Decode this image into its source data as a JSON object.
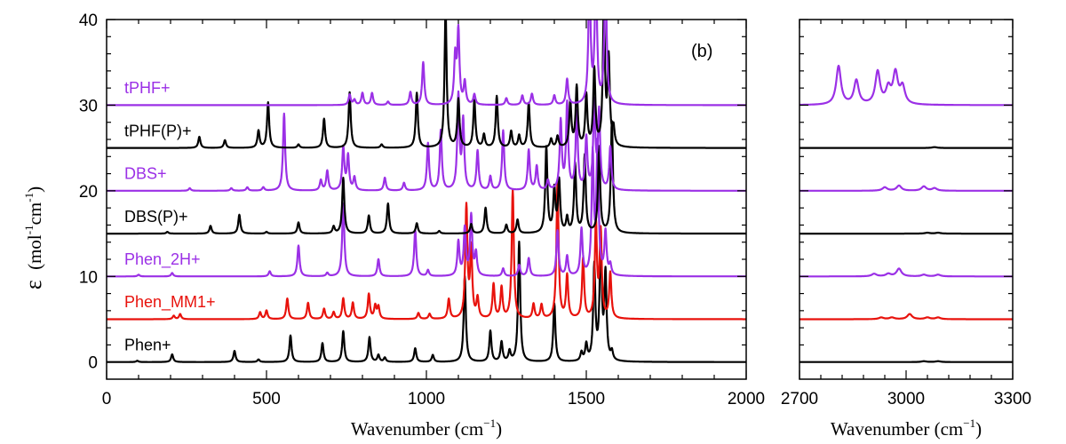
{
  "chart_data": [
    {
      "type": "line",
      "panel_label": "(b)",
      "xlabel_main": "Wavenumber (cm",
      "xlabel_sup": "−1",
      "xlabel_end": ")",
      "ylabel_symbol": "ε",
      "ylabel_unit": "(mol",
      "ylabel_sup1": "-1",
      "ylabel_mid": "cm",
      "ylabel_sup2": "-1",
      "ylabel_end": ")",
      "xlim": [
        0,
        2000
      ],
      "ylim": [
        -2,
        40
      ],
      "xticks": [
        0,
        500,
        1000,
        1500,
        2000
      ],
      "xtick_labels": [
        "0",
        "500",
        "1000",
        "1500",
        "2000"
      ],
      "yticks": [
        0,
        10,
        20,
        30,
        40
      ],
      "ytick_labels": [
        "0",
        "10",
        "20",
        "30",
        "40"
      ],
      "colors": {
        "black": "#000000",
        "purple": "#9b30e6",
        "red": "#e8120c"
      },
      "series": [
        {
          "name": "Phen+",
          "offset": 0,
          "color": "#000000",
          "peaks": [
            [
              96,
              0.15
            ],
            [
              205,
              0.9
            ],
            [
              400,
              1.3
            ],
            [
              475,
              0.3
            ],
            [
              575,
              3.1
            ],
            [
              675,
              2.2
            ],
            [
              740,
              3.6
            ],
            [
              822,
              2.9
            ],
            [
              850,
              0.8
            ],
            [
              870,
              0.5
            ],
            [
              965,
              1.6
            ],
            [
              1020,
              0.8
            ],
            [
              1120,
              10.0
            ],
            [
              1200,
              3.6
            ],
            [
              1235,
              2.3
            ],
            [
              1260,
              1.2
            ],
            [
              1290,
              14.0
            ],
            [
              1400,
              6.8
            ],
            [
              1485,
              1.0
            ],
            [
              1500,
              1.9
            ],
            [
              1525,
              11.0
            ],
            [
              1545,
              14.0
            ],
            [
              1560,
              10.0
            ],
            [
              1580,
              1.0
            ]
          ]
        },
        {
          "name": "Phen_MM1+",
          "offset": 5,
          "color": "#e8120c",
          "peaks": [
            [
              210,
              0.4
            ],
            [
              230,
              0.6
            ],
            [
              480,
              0.8
            ],
            [
              500,
              1.0
            ],
            [
              565,
              2.4
            ],
            [
              630,
              1.9
            ],
            [
              680,
              1.2
            ],
            [
              710,
              0.8
            ],
            [
              740,
              2.4
            ],
            [
              770,
              1.9
            ],
            [
              820,
              2.9
            ],
            [
              840,
              1.5
            ],
            [
              850,
              1.4
            ],
            [
              975,
              0.7
            ],
            [
              1010,
              0.6
            ],
            [
              1070,
              2.3
            ],
            [
              1125,
              13.0
            ],
            [
              1140,
              8.0
            ],
            [
              1160,
              2.3
            ],
            [
              1210,
              4.0
            ],
            [
              1235,
              3.6
            ],
            [
              1270,
              15.0
            ],
            [
              1335,
              1.7
            ],
            [
              1360,
              1.6
            ],
            [
              1410,
              16.0
            ],
            [
              1440,
              5.0
            ],
            [
              1490,
              7.0
            ],
            [
              1530,
              11.0
            ],
            [
              1545,
              10.0
            ],
            [
              1575,
              5.3
            ]
          ]
        },
        {
          "name": "Phen_2H+",
          "offset": 10,
          "color": "#9b30e6",
          "peaks": [
            [
              100,
              0.2
            ],
            [
              205,
              0.4
            ],
            [
              510,
              0.6
            ],
            [
              600,
              3.6
            ],
            [
              690,
              0.4
            ],
            [
              740,
              8.5
            ],
            [
              850,
              2.0
            ],
            [
              965,
              5.4
            ],
            [
              1005,
              0.7
            ],
            [
              1100,
              4.0
            ],
            [
              1120,
              5.5
            ],
            [
              1140,
              7.0
            ],
            [
              1155,
              2.6
            ],
            [
              1240,
              0.9
            ],
            [
              1290,
              1.3
            ],
            [
              1320,
              2.1
            ],
            [
              1410,
              5.3
            ],
            [
              1440,
              2.3
            ],
            [
              1485,
              5.4
            ],
            [
              1520,
              14.0
            ],
            [
              1535,
              15.0
            ],
            [
              1560,
              5.0
            ],
            [
              1575,
              1.2
            ]
          ]
        },
        {
          "name": "DBS(P)+",
          "offset": 15,
          "color": "#000000",
          "peaks": [
            [
              190,
              0.2
            ],
            [
              325,
              0.9
            ],
            [
              415,
              2.2
            ],
            [
              500,
              0.2
            ],
            [
              600,
              1.3
            ],
            [
              710,
              0.8
            ],
            [
              740,
              6.5
            ],
            [
              820,
              2.1
            ],
            [
              880,
              3.5
            ],
            [
              970,
              1.2
            ],
            [
              1040,
              0.3
            ],
            [
              1140,
              1.1
            ],
            [
              1185,
              3.0
            ],
            [
              1250,
              1.0
            ],
            [
              1285,
              1.6
            ],
            [
              1375,
              10.0
            ],
            [
              1400,
              5.0
            ],
            [
              1415,
              6.0
            ],
            [
              1440,
              1.7
            ],
            [
              1465,
              8.0
            ],
            [
              1495,
              9.0
            ],
            [
              1540,
              10.0
            ],
            [
              1580,
              13.0
            ]
          ]
        },
        {
          "name": "DBS+",
          "offset": 20,
          "color": "#9b30e6",
          "peaks": [
            [
              260,
              0.3
            ],
            [
              390,
              0.3
            ],
            [
              440,
              0.4
            ],
            [
              490,
              0.4
            ],
            [
              555,
              9.0
            ],
            [
              670,
              1.2
            ],
            [
              690,
              2.3
            ],
            [
              740,
              5.0
            ],
            [
              755,
              4.0
            ],
            [
              775,
              1.5
            ],
            [
              870,
              1.5
            ],
            [
              930,
              0.9
            ],
            [
              1005,
              5.5
            ],
            [
              1045,
              7.0
            ],
            [
              1100,
              11.0
            ],
            [
              1115,
              8.0
            ],
            [
              1160,
              4.6
            ],
            [
              1200,
              1.6
            ],
            [
              1240,
              7.0
            ],
            [
              1320,
              4.7
            ],
            [
              1345,
              2.8
            ],
            [
              1380,
              1.1
            ],
            [
              1420,
              8.0
            ],
            [
              1440,
              10.0
            ],
            [
              1470,
              9.0
            ],
            [
              1500,
              6.0
            ],
            [
              1525,
              10.0
            ],
            [
              1540,
              9.0
            ],
            [
              1575,
              5.0
            ]
          ]
        },
        {
          "name": "tPHF(P)+",
          "offset": 25,
          "color": "#000000",
          "peaks": [
            [
              290,
              1.3
            ],
            [
              370,
              0.9
            ],
            [
              475,
              2.0
            ],
            [
              505,
              5.3
            ],
            [
              600,
              0.4
            ],
            [
              680,
              3.4
            ],
            [
              760,
              6.5
            ],
            [
              860,
              0.4
            ],
            [
              970,
              6.4
            ],
            [
              1060,
              16.0
            ],
            [
              1100,
              5.6
            ],
            [
              1150,
              5.5
            ],
            [
              1180,
              1.5
            ],
            [
              1220,
              6.0
            ],
            [
              1265,
              1.9
            ],
            [
              1290,
              1.4
            ],
            [
              1320,
              5.2
            ],
            [
              1390,
              1.0
            ],
            [
              1410,
              1.3
            ],
            [
              1450,
              5.2
            ],
            [
              1470,
              7.0
            ],
            [
              1500,
              6.0
            ],
            [
              1525,
              9.0
            ],
            [
              1555,
              16.0
            ],
            [
              1570,
              10.0
            ],
            [
              1585,
              2.0
            ]
          ]
        },
        {
          "name": "tPHF+",
          "offset": 30,
          "color": "#9b30e6",
          "peaks": [
            [
              760,
              1.2
            ],
            [
              775,
              0.6
            ],
            [
              800,
              1.4
            ],
            [
              830,
              1.4
            ],
            [
              880,
              0.4
            ],
            [
              950,
              1.5
            ],
            [
              990,
              5.0
            ],
            [
              1090,
              5.5
            ],
            [
              1100,
              8.5
            ],
            [
              1120,
              2.6
            ],
            [
              1150,
              1.2
            ],
            [
              1250,
              0.8
            ],
            [
              1300,
              1.1
            ],
            [
              1330,
              1.3
            ],
            [
              1400,
              1.1
            ],
            [
              1440,
              3.0
            ],
            [
              1510,
              15.0
            ],
            [
              1530,
              16.0
            ],
            [
              1560,
              16.0
            ]
          ]
        }
      ],
      "series_labels": [
        {
          "text": "tPHF+",
          "color": "#9b30e6",
          "y": 32
        },
        {
          "text": "tPHF(P)+",
          "color": "#000000",
          "y": 27
        },
        {
          "text": "DBS+",
          "color": "#9b30e6",
          "y": 22
        },
        {
          "text": "DBS(P)+",
          "color": "#000000",
          "y": 17
        },
        {
          "text": "Phen_2H+",
          "color": "#9b30e6",
          "y": 12
        },
        {
          "text": "Phen_MM1+",
          "color": "#e8120c",
          "y": 7
        },
        {
          "text": "Phen+",
          "color": "#000000",
          "y": 2
        }
      ]
    },
    {
      "type": "line",
      "xlabel_main": "Wavenumber (cm",
      "xlabel_sup": "−1",
      "xlabel_end": ")",
      "xlim": [
        2700,
        3300
      ],
      "ylim": [
        -2,
        40
      ],
      "xticks": [
        2700,
        3000,
        3300
      ],
      "xtick_labels": [
        "2700",
        "3000",
        "3300"
      ],
      "series": [
        {
          "name": "Phen+",
          "offset": 0,
          "color": "#000000",
          "peaks": [
            [
              3050,
              0.1
            ],
            [
              3090,
              0.1
            ]
          ]
        },
        {
          "name": "Phen_MM1+",
          "offset": 5,
          "color": "#e8120c",
          "peaks": [
            [
              2930,
              0.2
            ],
            [
              2960,
              0.2
            ],
            [
              3010,
              0.6
            ],
            [
              3060,
              0.2
            ],
            [
              3090,
              0.2
            ]
          ]
        },
        {
          "name": "Phen_2H+",
          "offset": 10,
          "color": "#9b30e6",
          "peaks": [
            [
              2910,
              0.3
            ],
            [
              2950,
              0.3
            ],
            [
              2980,
              0.9
            ],
            [
              3050,
              0.2
            ],
            [
              3090,
              0.2
            ]
          ]
        },
        {
          "name": "DBS(P)+",
          "offset": 15,
          "color": "#000000",
          "peaks": [
            [
              3060,
              0.1
            ],
            [
              3090,
              0.1
            ]
          ]
        },
        {
          "name": "DBS+",
          "offset": 20,
          "color": "#9b30e6",
          "peaks": [
            [
              2940,
              0.4
            ],
            [
              2980,
              0.6
            ],
            [
              3050,
              0.5
            ],
            [
              3080,
              0.3
            ]
          ]
        },
        {
          "name": "tPHF(P)+",
          "offset": 25,
          "color": "#000000",
          "peaks": [
            [
              3080,
              0.1
            ]
          ]
        },
        {
          "name": "tPHF+",
          "offset": 30,
          "color": "#9b30e6",
          "peaks": [
            [
              2810,
              4.5
            ],
            [
              2860,
              2.8
            ],
            [
              2920,
              3.8
            ],
            [
              2950,
              1.8
            ],
            [
              2970,
              3.6
            ],
            [
              2990,
              2.0
            ]
          ]
        }
      ]
    }
  ]
}
